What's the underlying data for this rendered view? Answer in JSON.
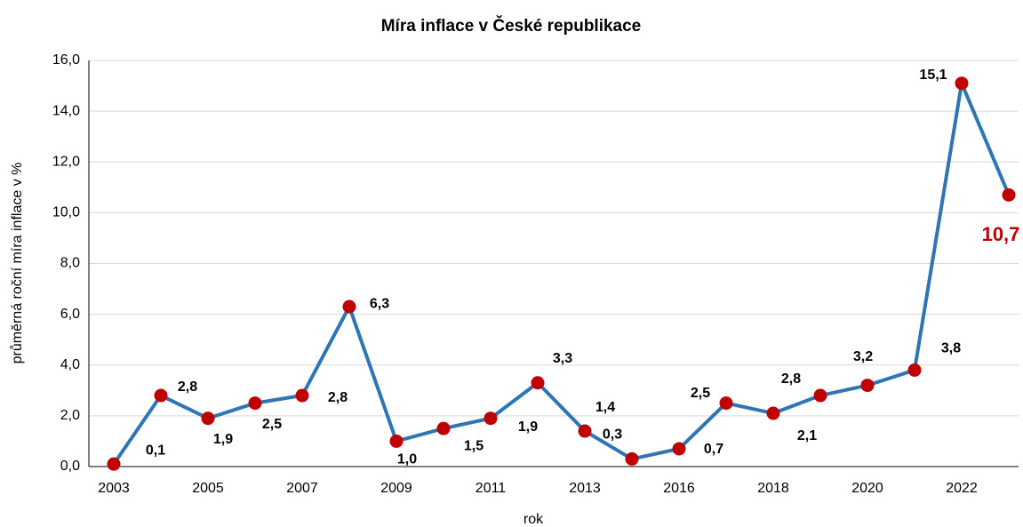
{
  "chart_data": {
    "type": "line",
    "title": "Míra inflace v České republikace",
    "x_label": "rok",
    "y_label": "průměrná roční míra inflace v %",
    "categories": [
      "2003",
      null,
      "2005",
      null,
      "2007",
      null,
      "2009",
      null,
      "2011",
      null,
      "2013",
      null,
      "2016",
      null,
      "2018",
      null,
      "2020",
      null,
      "2022",
      null
    ],
    "series": [
      {
        "name": "Míra inflace",
        "color": "#2e75b6",
        "marker_color": "#c00000",
        "values": [
          0.1,
          2.8,
          1.9,
          2.5,
          2.8,
          6.3,
          1.0,
          1.5,
          1.9,
          3.3,
          1.4,
          0.3,
          0.7,
          2.5,
          2.1,
          2.8,
          3.2,
          3.8,
          15.1,
          10.7
        ],
        "value_labels": [
          "0,1",
          "2,8",
          "1,9",
          "2,5",
          "2,8",
          "6,3",
          "1,0",
          "1,5",
          "1,9",
          "3,3",
          "1,4",
          "0,3",
          "0,7",
          "2,5",
          "2,1",
          "2,8",
          "3,2",
          "3,8",
          "15,1",
          "10,7"
        ]
      }
    ],
    "ylim": [
      0,
      16
    ],
    "yticks": [
      {
        "value": 0,
        "label": "0,0"
      },
      {
        "value": 2,
        "label": "2,0"
      },
      {
        "value": 4,
        "label": "4,0"
      },
      {
        "value": 6,
        "label": "6,0"
      },
      {
        "value": 8,
        "label": "8,0"
      },
      {
        "value": 10,
        "label": "10,0"
      },
      {
        "value": 12,
        "label": "12,0"
      },
      {
        "value": 14,
        "label": "14,0"
      },
      {
        "value": 16,
        "label": "16,0"
      }
    ],
    "grid": true,
    "highlight_color": "#c00000"
  }
}
